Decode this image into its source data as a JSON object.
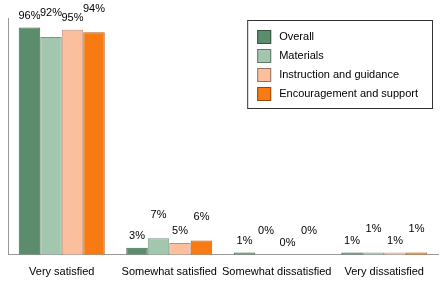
{
  "chart_data": {
    "type": "bar",
    "categories": [
      "Very satisfied",
      "Somewhat satisfied",
      "Somewhat dissatisfied",
      "Very dissatisfied"
    ],
    "series": [
      {
        "name": "Overall",
        "color": "#5b8c6b",
        "values": [
          96,
          3,
          1,
          1
        ],
        "value_labels": [
          "96%",
          "3%",
          "1%",
          "1%"
        ]
      },
      {
        "name": "Materials",
        "color": "#a2c6ae",
        "values": [
          92,
          7,
          0,
          1
        ],
        "value_labels": [
          "92%",
          "7%",
          "0%",
          "1%"
        ]
      },
      {
        "name": "Instruction and guidance",
        "color": "#fcbf9e",
        "values": [
          95,
          5,
          0,
          1
        ],
        "value_labels": [
          "95%",
          "5%",
          "0%",
          "1%"
        ]
      },
      {
        "name": "Encouragement and support",
        "color": "#f77b12",
        "values": [
          94,
          6,
          0,
          1
        ],
        "value_labels": [
          "94%",
          "6%",
          "0%",
          "1%"
        ]
      }
    ],
    "ylim": [
      0,
      100
    ],
    "grid": false,
    "legend": "upper right",
    "data_labels": true,
    "tick_labels": "x"
  }
}
